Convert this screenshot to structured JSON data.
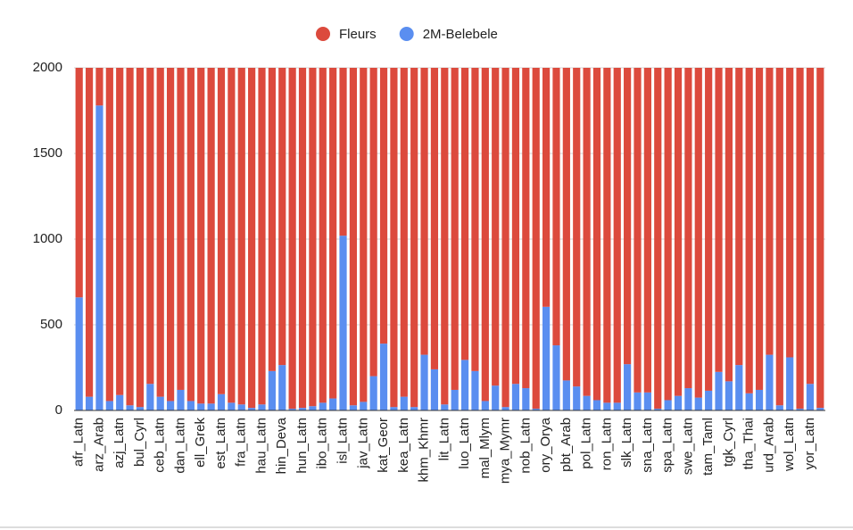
{
  "chart_data": {
    "type": "stacked_bar",
    "categories": [
      "afr_Latn",
      null,
      "arz_Arab",
      null,
      "azj_Latn",
      null,
      "bul_Cyrl",
      null,
      "ceb_Latn",
      null,
      "dan_Latn",
      null,
      "ell_Grek",
      null,
      "est_Latn",
      null,
      "fra_Latn",
      null,
      "hau_Latn",
      null,
      "hin_Deva",
      null,
      "hun_Latn",
      null,
      "ibo_Latn",
      null,
      "isl_Latn",
      null,
      "jav_Latn",
      null,
      "kat_Geor",
      null,
      "kea_Latn",
      null,
      "khm_Khmr",
      null,
      "lit_Latn",
      null,
      "luo_Latn",
      null,
      "mal_Mlym",
      null,
      "mya_Mymr",
      null,
      "nob_Latn",
      null,
      "ory_Orya",
      null,
      "pbt_Arab",
      null,
      "pol_Latn",
      null,
      "ron_Latn",
      null,
      "slk_Latn",
      null,
      "sna_Latn",
      null,
      "spa_Latn",
      null,
      "swe_Latn",
      null,
      "tam_Taml",
      null,
      "tgk_Cyrl",
      null,
      "tha_Thai",
      null,
      "urd_Arab",
      null,
      "wol_Latn",
      null,
      "yor_Latn",
      null
    ],
    "series": [
      {
        "name": "2M-Belebele",
        "color": "#5a8ef0",
        "values": [
          660,
          80,
          1780,
          55,
          90,
          30,
          20,
          155,
          80,
          55,
          120,
          55,
          40,
          40,
          95,
          45,
          35,
          15,
          35,
          230,
          265,
          10,
          15,
          25,
          45,
          70,
          1020,
          30,
          50,
          200,
          390,
          20,
          80,
          20,
          325,
          240,
          35,
          120,
          295,
          230,
          55,
          145,
          20,
          155,
          130,
          10,
          605,
          380,
          175,
          140,
          85,
          60,
          45,
          45,
          270,
          105,
          105,
          10,
          60,
          85,
          130,
          75,
          115,
          225,
          170,
          265,
          100,
          120,
          325,
          30,
          310,
          10,
          155,
          15
        ]
      },
      {
        "name": "Fleurs",
        "color": "#dc4a3d",
        "values": [
          1340,
          1920,
          220,
          1945,
          1910,
          1970,
          1980,
          1845,
          1920,
          1945,
          1880,
          1945,
          1960,
          1960,
          1905,
          1955,
          1965,
          1985,
          1965,
          1770,
          1735,
          1990,
          1985,
          1975,
          1955,
          1930,
          980,
          1970,
          1950,
          1800,
          1610,
          1980,
          1920,
          1980,
          1675,
          1760,
          1965,
          1880,
          1705,
          1770,
          1945,
          1855,
          1980,
          1845,
          1870,
          1990,
          1395,
          1620,
          1825,
          1860,
          1915,
          1940,
          1955,
          1955,
          1730,
          1895,
          1895,
          1990,
          1940,
          1915,
          1870,
          1925,
          1885,
          1775,
          1830,
          1735,
          1900,
          1880,
          1675,
          1970,
          1690,
          1990,
          1845,
          1985
        ]
      }
    ],
    "legend_order": [
      1,
      0
    ],
    "ylim": [
      0,
      2000
    ],
    "yticks": [
      0,
      500,
      1000,
      1500,
      2000
    ],
    "grid": true,
    "legend": "top"
  }
}
